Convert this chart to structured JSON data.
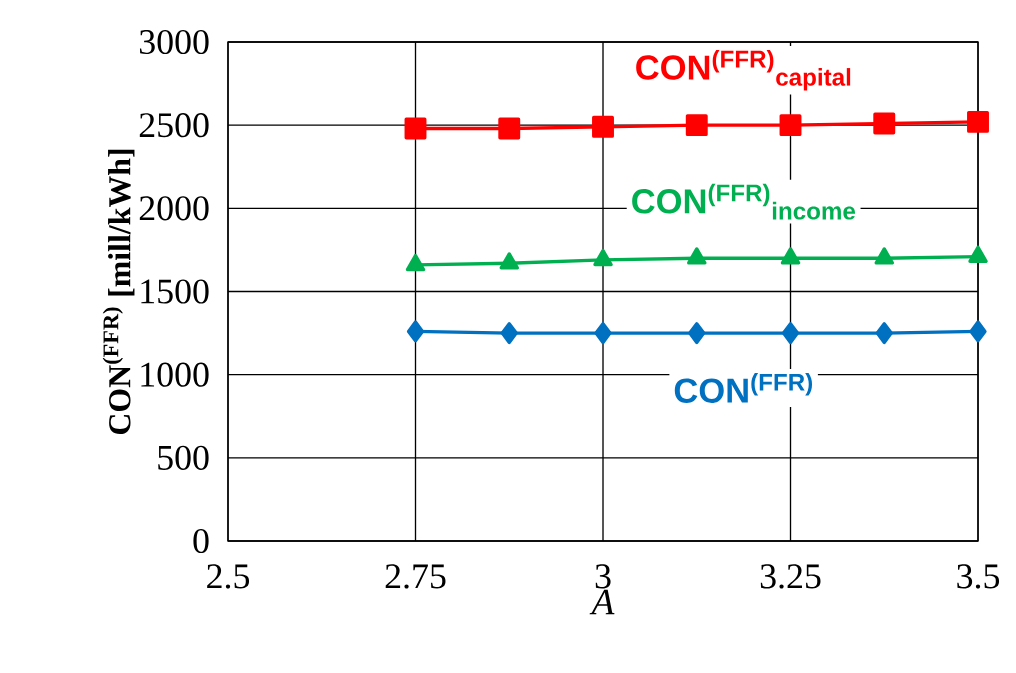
{
  "chart_data": {
    "type": "line",
    "xlabel": "A",
    "ylabel": "CON$^{(FFR)}$ [mill/kWh]",
    "x": [
      2.75,
      2.875,
      3,
      3.125,
      3.25,
      3.375,
      3.5
    ],
    "series": [
      {
        "name": "CON$^{(FFR)}$$_{capital}$",
        "color": "#ff0000",
        "marker": "square",
        "values": [
          2480,
          2480,
          2490,
          2500,
          2500,
          2510,
          2520
        ]
      },
      {
        "name": "CON$^{(FFR)}$$_{income}$",
        "color": "#00b050",
        "marker": "triangle",
        "values": [
          1660,
          1670,
          1690,
          1700,
          1700,
          1700,
          1710
        ]
      },
      {
        "name": "CON$^{(FFR)}$",
        "color": "#0070c0",
        "marker": "diamond",
        "values": [
          1260,
          1250,
          1250,
          1250,
          1250,
          1250,
          1260
        ]
      }
    ],
    "xlim": [
      2.5,
      3.5
    ],
    "ylim": [
      0,
      3000
    ],
    "xticks": [
      2.5,
      2.75,
      3,
      3.25,
      3.5
    ],
    "yticks": [
      0,
      500,
      1000,
      1500,
      2000,
      2500,
      3000
    ],
    "grid": true,
    "line_style": "solid"
  }
}
